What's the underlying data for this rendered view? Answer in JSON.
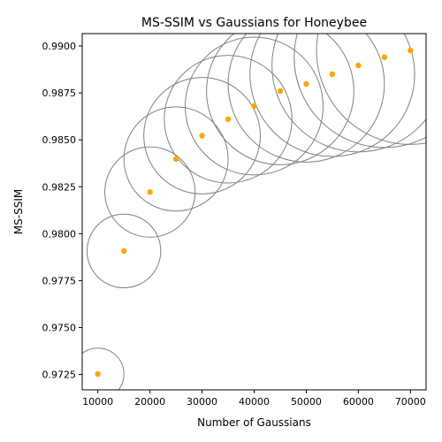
{
  "chart_data": {
    "type": "scatter",
    "title": "MS-SSIM vs Gaussians for Honeybee",
    "xlabel": "Number of Gaussians",
    "ylabel": "MS-SSIM",
    "xlim": [
      7000,
      73000
    ],
    "ylim": [
      0.97168,
      0.99066
    ],
    "xticks": [
      10000,
      20000,
      30000,
      40000,
      50000,
      60000,
      70000
    ],
    "xtick_labels": [
      "10000",
      "20000",
      "30000",
      "40000",
      "50000",
      "60000",
      "70000"
    ],
    "yticks": [
      0.9725,
      0.975,
      0.9775,
      0.98,
      0.9825,
      0.985,
      0.9875,
      0.99
    ],
    "ytick_labels": [
      "0.9725",
      "0.9750",
      "0.9775",
      "0.9800",
      "0.9825",
      "0.9850",
      "0.9875",
      "0.9900"
    ],
    "grid": false,
    "legend": "none",
    "x": [
      10000,
      15000,
      20000,
      25000,
      30000,
      35000,
      40000,
      45000,
      50000,
      55000,
      60000,
      65000,
      70000
    ],
    "y": [
      0.97252,
      0.97908,
      0.98222,
      0.98398,
      0.98522,
      0.9861,
      0.9868,
      0.9876,
      0.98798,
      0.9885,
      0.98896,
      0.9894,
      0.98976
    ],
    "point_color": "#ffa500",
    "bubble_edge_color": "#808080",
    "bubble_radius_x": 5000
  }
}
